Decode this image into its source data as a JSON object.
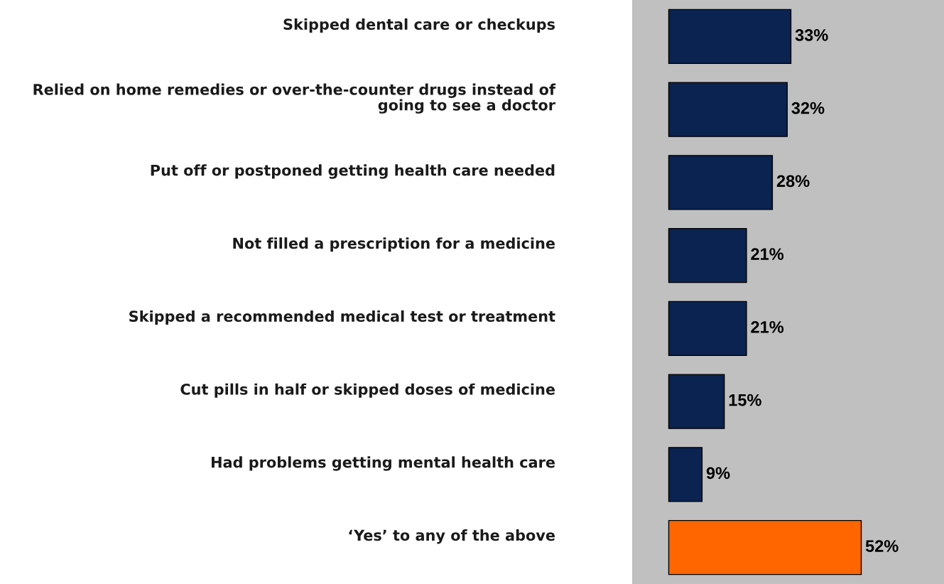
{
  "chart_data": {
    "type": "bar",
    "orientation": "horizontal",
    "categories": [
      "Skipped dental care or checkups",
      "Relied on home remedies or over-the-counter drugs instead of going to see a doctor",
      "Put off or postponed getting health care needed",
      "Not filled a prescription for a medicine",
      "Skipped a recommended medical test or treatment",
      "Cut pills in half or skipped doses of medicine",
      "Had problems getting mental health care",
      "‘Yes’ to any of the above"
    ],
    "values": [
      33,
      32,
      28,
      21,
      21,
      15,
      9,
      52
    ],
    "value_labels": [
      "33%",
      "32%",
      "28%",
      "21%",
      "21%",
      "15%",
      "9%",
      "52%"
    ],
    "colors": [
      "#0a2350",
      "#0a2350",
      "#0a2350",
      "#0a2350",
      "#0a2350",
      "#0a2350",
      "#0a2350",
      "#ff6600"
    ]
  }
}
